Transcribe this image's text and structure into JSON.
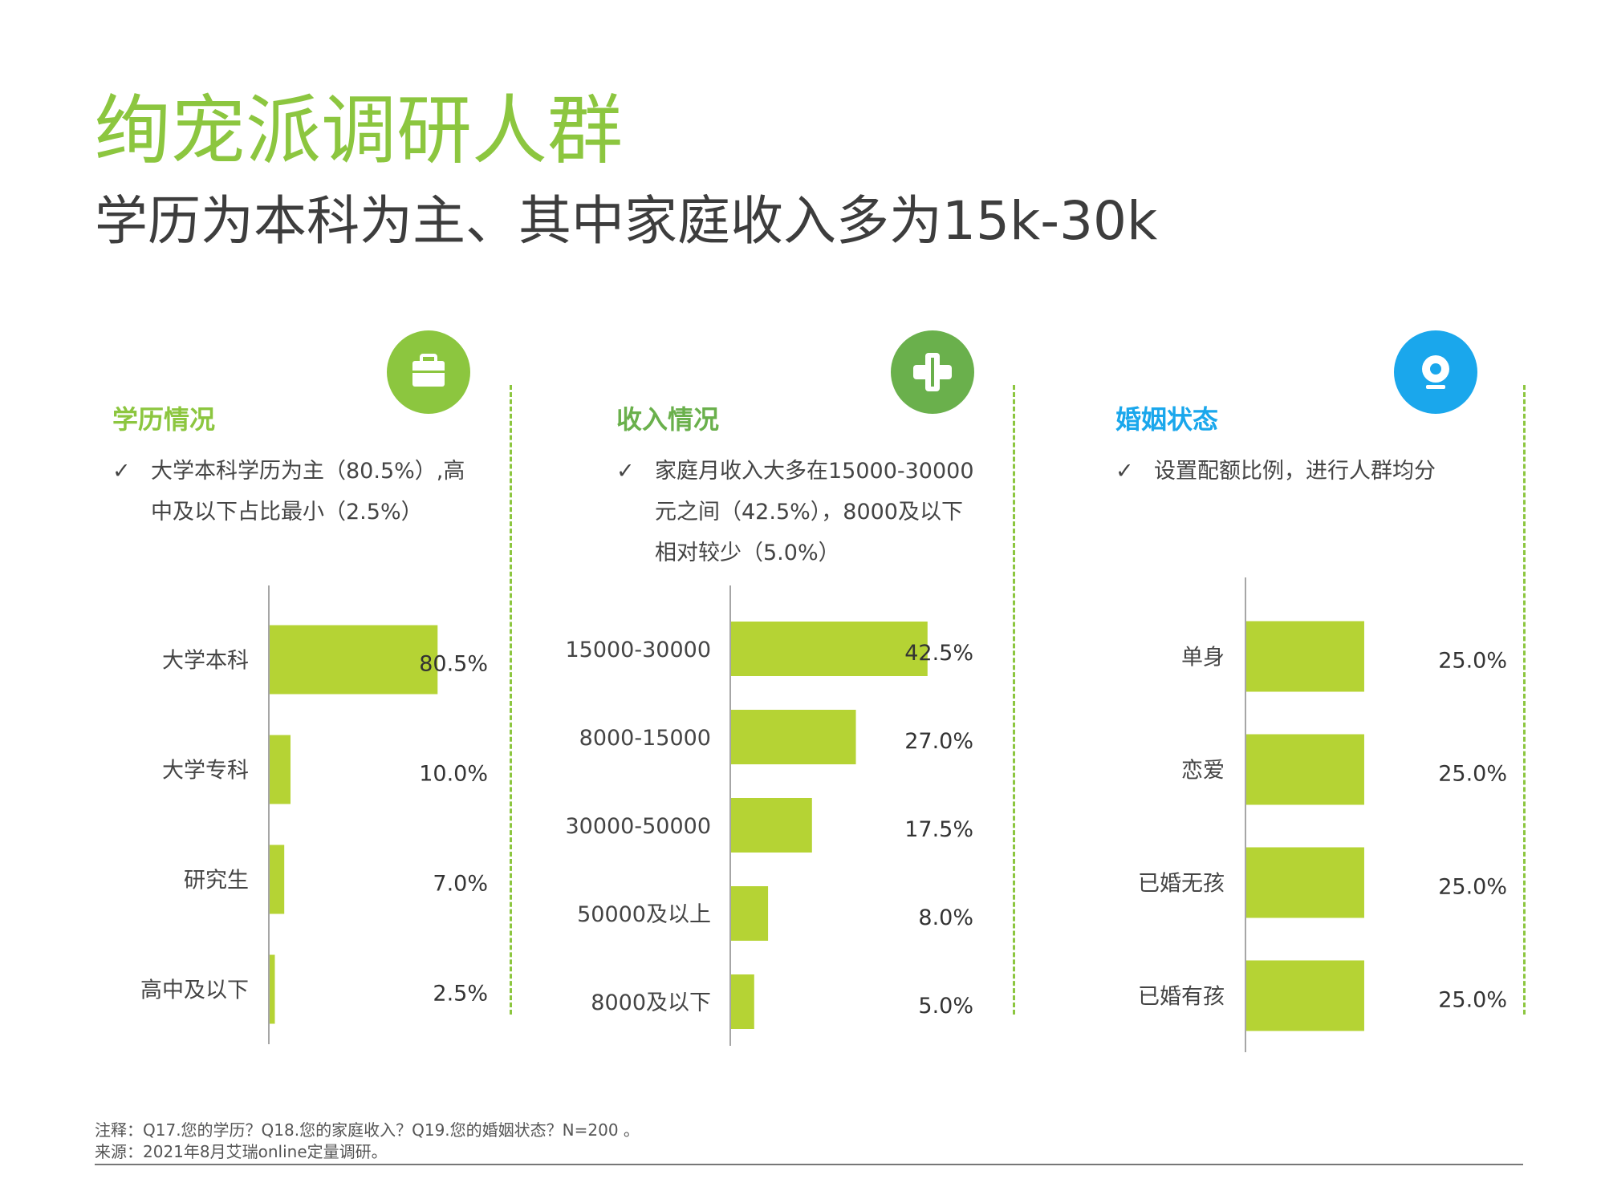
{
  "title": "绚宠派调研人群",
  "subtitle": "学历为本科为主、其中家庭收入多为15k-30k",
  "colors": {
    "accent": "#8cc63f",
    "bar": "#b5d334",
    "blue": "#1aa7ec",
    "green_dark": "#6ab04c"
  },
  "panels": [
    {
      "heading": "学历情况",
      "heading_color": "#8cc63f",
      "icon": "briefcase-icon",
      "check": "✓",
      "bullet_lines": [
        "大学本科学历为主（80.5%）,高",
        "中及以下占比最小（2.5%）"
      ]
    },
    {
      "heading": "收入情况",
      "heading_color": "#6ab04c",
      "icon": "medical-cross-icon",
      "check": "✓",
      "bullet_lines": [
        "家庭月收入大多在15000-30000",
        "元之间（42.5%），8000及以下",
        "相对较少（5.0%）"
      ]
    },
    {
      "heading": "婚姻状态",
      "heading_color": "#1aa7ec",
      "icon": "webcam-icon",
      "check": "✓",
      "bullet_lines": [
        "设置配额比例，进行人群均分"
      ]
    }
  ],
  "chart_data": [
    {
      "type": "bar",
      "orientation": "horizontal",
      "categories": [
        "大学本科",
        "大学专科",
        "研究生",
        "高中及以下"
      ],
      "values": [
        80.5,
        10.0,
        7.0,
        2.5
      ],
      "value_labels": [
        "80.5%",
        "10.0%",
        "7.0%",
        "2.5%"
      ],
      "xlim": [
        0,
        100
      ]
    },
    {
      "type": "bar",
      "orientation": "horizontal",
      "categories": [
        "15000-30000",
        "8000-15000",
        "30000-50000",
        "50000及以上",
        "8000及以下"
      ],
      "values": [
        42.5,
        27.0,
        17.5,
        8.0,
        5.0
      ],
      "value_labels": [
        "42.5%",
        "27.0%",
        "17.5%",
        "8.0%",
        "5.0%"
      ],
      "xlim": [
        0,
        50
      ]
    },
    {
      "type": "bar",
      "orientation": "horizontal",
      "categories": [
        "单身",
        "恋爱",
        "已婚无孩",
        "已婚有孩"
      ],
      "values": [
        25.0,
        25.0,
        25.0,
        25.0
      ],
      "value_labels": [
        "25.0%",
        "25.0%",
        "25.0%",
        "25.0%"
      ],
      "xlim": [
        0,
        33
      ]
    }
  ],
  "footer": {
    "note": "注释：Q17.您的学历？Q18.您的家庭收入？Q19.您的婚姻状态？N=200 。",
    "source": "来源：2021年8月艾瑞online定量调研。"
  }
}
